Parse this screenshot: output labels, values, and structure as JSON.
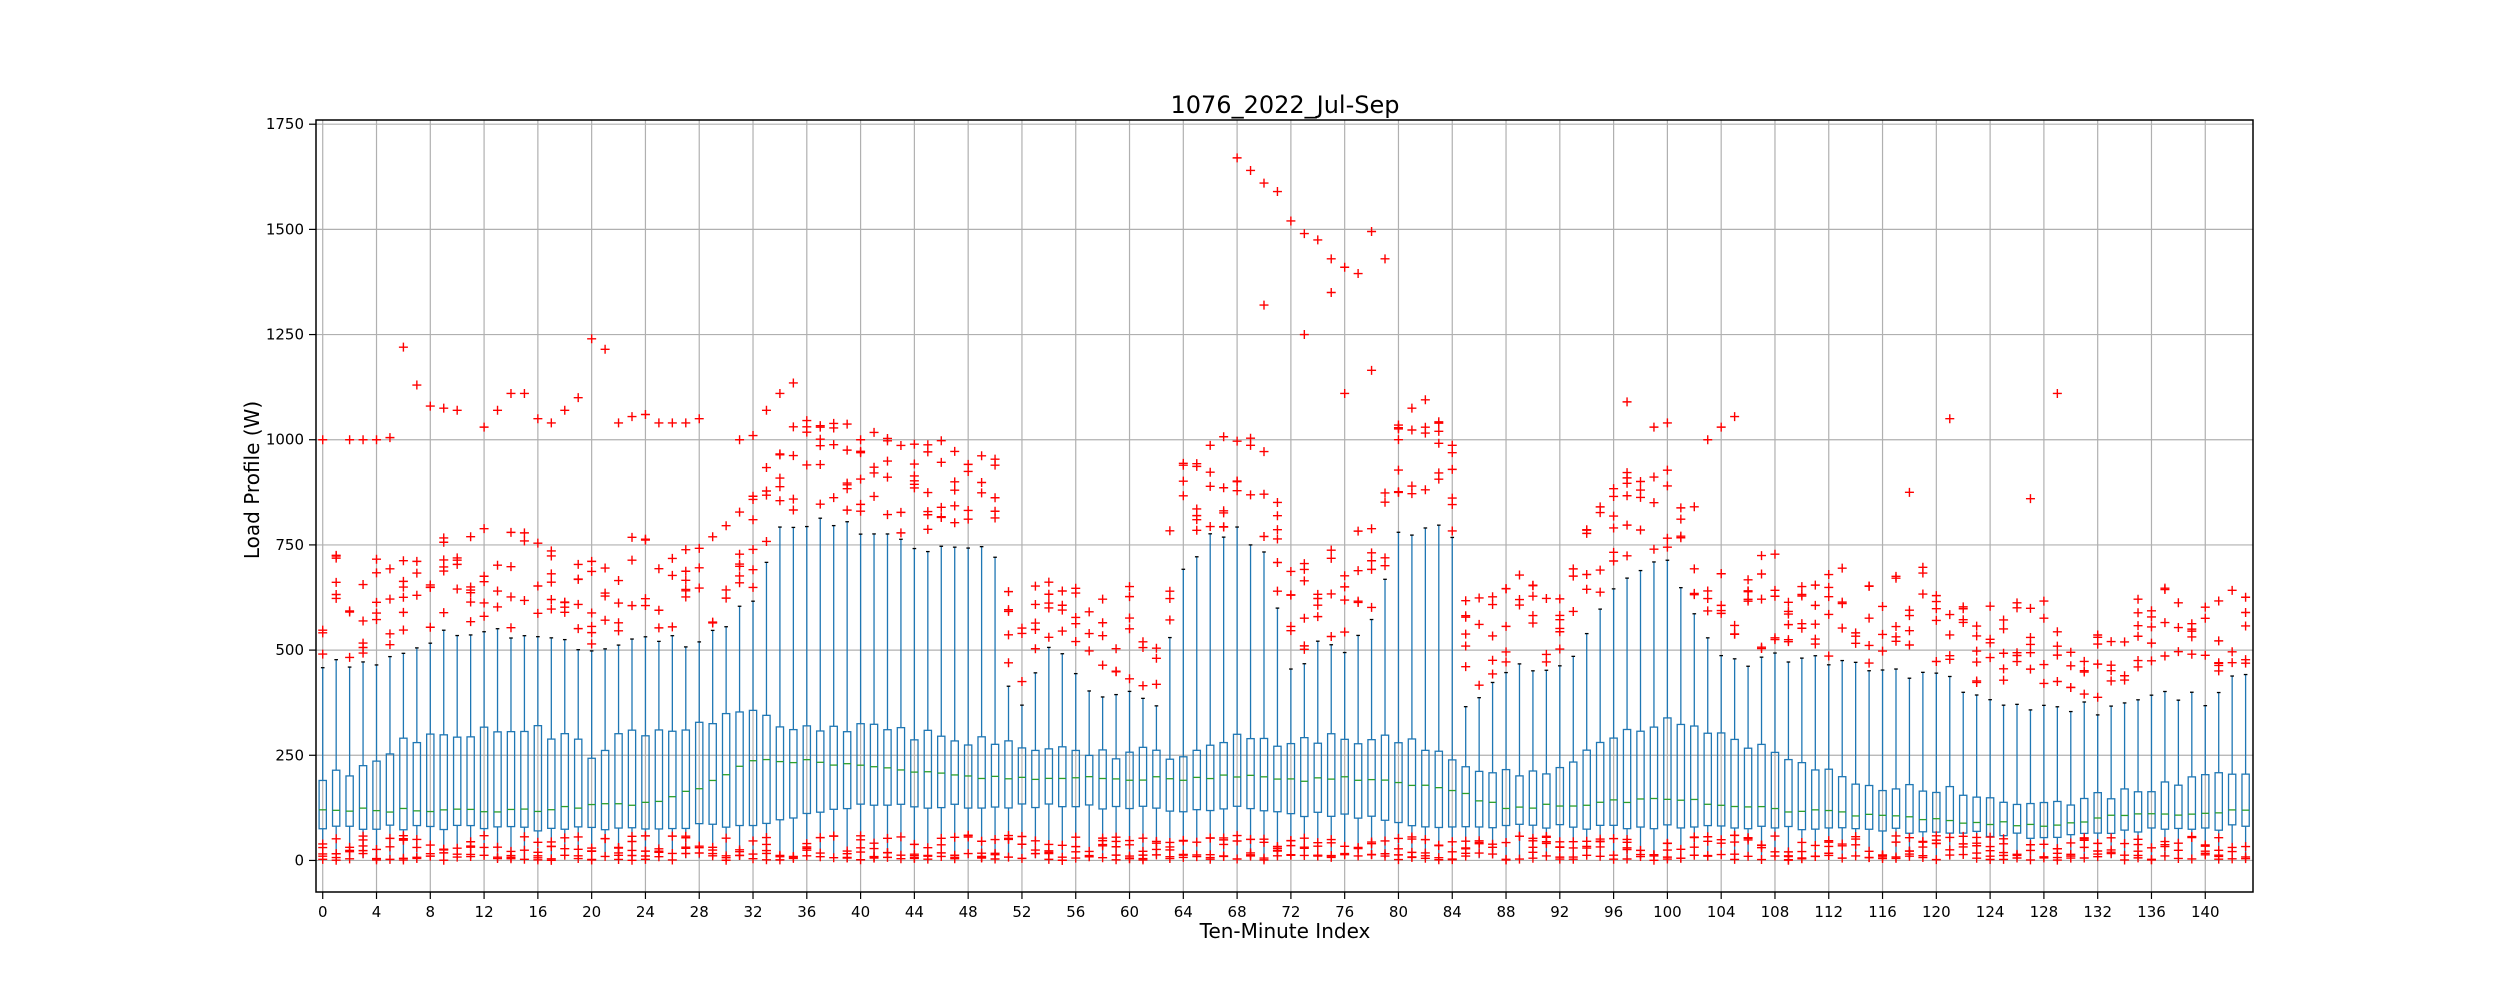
{
  "chart_data": {
    "type": "box",
    "title": "1076_2022_Jul-Sep",
    "xlabel": "Ten-Minute Index",
    "ylabel": "Load Profile (W)",
    "x_range": [
      0,
      143
    ],
    "x_tick_values": [
      0,
      4,
      8,
      12,
      16,
      20,
      24,
      28,
      32,
      36,
      40,
      44,
      48,
      52,
      56,
      60,
      64,
      68,
      72,
      76,
      80,
      84,
      88,
      92,
      96,
      100,
      104,
      108,
      112,
      116,
      120,
      124,
      128,
      132,
      136,
      140
    ],
    "x_tick_labels": [
      "0",
      "4",
      "8",
      "12",
      "16",
      "20",
      "24",
      "28",
      "32",
      "36",
      "40",
      "44",
      "48",
      "52",
      "56",
      "60",
      "64",
      "68",
      "72",
      "76",
      "80",
      "84",
      "88",
      "92",
      "96",
      "100",
      "104",
      "108",
      "112",
      "116",
      "120",
      "124",
      "128",
      "132",
      "136",
      "140"
    ],
    "ylim": [
      -75,
      1760
    ],
    "y_tick_values": [
      0,
      250,
      500,
      750,
      1000,
      1250,
      1500,
      1750
    ],
    "y_tick_labels": [
      "0",
      "250",
      "500",
      "750",
      "1000",
      "1250",
      "1500",
      "1750"
    ],
    "grid": true,
    "colors": {
      "box": "#1f77b4",
      "median": "#2ca02c",
      "flier": "#ff0000",
      "grid": "#b0b0b0",
      "axis": "#000000"
    },
    "box_count": 144,
    "stats_by_index": {
      "q1": [
        [
          0,
          80
        ],
        [
          20,
          75
        ],
        [
          32,
          85
        ],
        [
          40,
          130
        ],
        [
          52,
          130
        ],
        [
          56,
          130
        ],
        [
          64,
          120
        ],
        [
          68,
          125
        ],
        [
          72,
          110
        ],
        [
          76,
          110
        ],
        [
          80,
          90
        ],
        [
          84,
          80
        ],
        [
          90,
          80
        ],
        [
          96,
          80
        ],
        [
          100,
          80
        ],
        [
          108,
          80
        ],
        [
          114,
          75
        ],
        [
          118,
          70
        ],
        [
          122,
          65
        ],
        [
          126,
          60
        ],
        [
          128,
          55
        ],
        [
          134,
          70
        ],
        [
          143,
          80
        ]
      ],
      "median": [
        [
          0,
          120
        ],
        [
          8,
          120
        ],
        [
          16,
          120
        ],
        [
          20,
          130
        ],
        [
          24,
          135
        ],
        [
          28,
          170
        ],
        [
          32,
          240
        ],
        [
          36,
          235
        ],
        [
          40,
          225
        ],
        [
          44,
          210
        ],
        [
          48,
          200
        ],
        [
          56,
          195
        ],
        [
          64,
          195
        ],
        [
          68,
          200
        ],
        [
          72,
          190
        ],
        [
          76,
          195
        ],
        [
          80,
          185
        ],
        [
          84,
          165
        ],
        [
          88,
          125
        ],
        [
          92,
          130
        ],
        [
          96,
          140
        ],
        [
          100,
          145
        ],
        [
          104,
          135
        ],
        [
          108,
          120
        ],
        [
          112,
          115
        ],
        [
          116,
          105
        ],
        [
          120,
          95
        ],
        [
          124,
          90
        ],
        [
          128,
          85
        ],
        [
          132,
          100
        ],
        [
          136,
          110
        ],
        [
          140,
          115
        ],
        [
          143,
          120
        ]
      ],
      "q3": [
        [
          0,
          200
        ],
        [
          3,
          220
        ],
        [
          6,
          280
        ],
        [
          8,
          300
        ],
        [
          12,
          310
        ],
        [
          16,
          310
        ],
        [
          19,
          280
        ],
        [
          20,
          240
        ],
        [
          22,
          300
        ],
        [
          26,
          300
        ],
        [
          28,
          320
        ],
        [
          32,
          360
        ],
        [
          34,
          330
        ],
        [
          36,
          310
        ],
        [
          40,
          320
        ],
        [
          44,
          300
        ],
        [
          48,
          285
        ],
        [
          52,
          270
        ],
        [
          56,
          270
        ],
        [
          58,
          255
        ],
        [
          62,
          255
        ],
        [
          64,
          250
        ],
        [
          66,
          275
        ],
        [
          68,
          290
        ],
        [
          72,
          280
        ],
        [
          76,
          290
        ],
        [
          80,
          285
        ],
        [
          83,
          260
        ],
        [
          84,
          230
        ],
        [
          86,
          210
        ],
        [
          92,
          220
        ],
        [
          96,
          300
        ],
        [
          100,
          330
        ],
        [
          104,
          300
        ],
        [
          106,
          280
        ],
        [
          108,
          260
        ],
        [
          112,
          210
        ],
        [
          116,
          180
        ],
        [
          120,
          170
        ],
        [
          124,
          150
        ],
        [
          128,
          130
        ],
        [
          132,
          150
        ],
        [
          136,
          165
        ],
        [
          140,
          200
        ],
        [
          143,
          215
        ]
      ],
      "whisker_low": [
        [
          0,
          5
        ],
        [
          143,
          5
        ]
      ],
      "whisker_high": [
        [
          0,
          470
        ],
        [
          4,
          470
        ],
        [
          8,
          530
        ],
        [
          12,
          540
        ],
        [
          16,
          530
        ],
        [
          20,
          510
        ],
        [
          24,
          520
        ],
        [
          28,
          520
        ],
        [
          30,
          550
        ],
        [
          32,
          630
        ],
        [
          34,
          800
        ],
        [
          38,
          800
        ],
        [
          44,
          750
        ],
        [
          48,
          740
        ],
        [
          50,
          730
        ],
        [
          51,
          410
        ],
        [
          52,
          370
        ],
        [
          54,
          510
        ],
        [
          56,
          450
        ],
        [
          58,
          380
        ],
        [
          60,
          410
        ],
        [
          62,
          380
        ],
        [
          64,
          700
        ],
        [
          66,
          770
        ],
        [
          68,
          780
        ],
        [
          70,
          720
        ],
        [
          72,
          450
        ],
        [
          74,
          510
        ],
        [
          76,
          500
        ],
        [
          78,
          560
        ],
        [
          80,
          780
        ],
        [
          82,
          790
        ],
        [
          84,
          780
        ],
        [
          85,
          360
        ],
        [
          88,
          460
        ],
        [
          92,
          450
        ],
        [
          94,
          550
        ],
        [
          96,
          640
        ],
        [
          98,
          700
        ],
        [
          100,
          700
        ],
        [
          102,
          600
        ],
        [
          104,
          480
        ],
        [
          106,
          470
        ],
        [
          108,
          480
        ],
        [
          112,
          470
        ],
        [
          116,
          450
        ],
        [
          118,
          430
        ],
        [
          120,
          440
        ],
        [
          124,
          380
        ],
        [
          128,
          370
        ],
        [
          132,
          360
        ],
        [
          136,
          400
        ],
        [
          140,
          380
        ],
        [
          143,
          450
        ]
      ]
    },
    "fliers_low_range": [
      0,
      60
    ],
    "outliers_sample": [
      [
        0,
        1000
      ],
      [
        2,
        1000
      ],
      [
        3,
        1000
      ],
      [
        4,
        1000
      ],
      [
        5,
        1005
      ],
      [
        6,
        1220
      ],
      [
        7,
        1130
      ],
      [
        8,
        1080
      ],
      [
        9,
        1075
      ],
      [
        10,
        1070
      ],
      [
        12,
        1030
      ],
      [
        13,
        1070
      ],
      [
        14,
        1110
      ],
      [
        15,
        1110
      ],
      [
        16,
        1050
      ],
      [
        17,
        1040
      ],
      [
        18,
        1070
      ],
      [
        19,
        1100
      ],
      [
        20,
        1240
      ],
      [
        21,
        1215
      ],
      [
        22,
        1040
      ],
      [
        23,
        1055
      ],
      [
        24,
        1060
      ],
      [
        25,
        1040
      ],
      [
        26,
        1040
      ],
      [
        27,
        1040
      ],
      [
        28,
        1050
      ],
      [
        31,
        1000
      ],
      [
        32,
        1010
      ],
      [
        33,
        1070
      ],
      [
        34,
        1110
      ],
      [
        35,
        1135
      ],
      [
        37,
        1030
      ],
      [
        40,
        1000
      ],
      [
        68,
        1670
      ],
      [
        69,
        1640
      ],
      [
        70,
        1610
      ],
      [
        71,
        1590
      ],
      [
        72,
        1520
      ],
      [
        73,
        1490
      ],
      [
        74,
        1475
      ],
      [
        75,
        1430
      ],
      [
        76,
        1410
      ],
      [
        77,
        1395
      ],
      [
        78,
        1495
      ],
      [
        79,
        1430
      ],
      [
        70,
        1320
      ],
      [
        73,
        1250
      ],
      [
        75,
        1350
      ],
      [
        76,
        1110
      ],
      [
        78,
        1165
      ],
      [
        80,
        1035
      ],
      [
        81,
        1075
      ],
      [
        82,
        1095
      ],
      [
        83,
        1020
      ],
      [
        97,
        1090
      ],
      [
        99,
        1030
      ],
      [
        100,
        1040
      ],
      [
        103,
        1000
      ],
      [
        104,
        1030
      ],
      [
        105,
        1055
      ],
      [
        121,
        1050
      ],
      [
        129,
        1110
      ],
      [
        127,
        860
      ],
      [
        118,
        875
      ]
    ]
  }
}
